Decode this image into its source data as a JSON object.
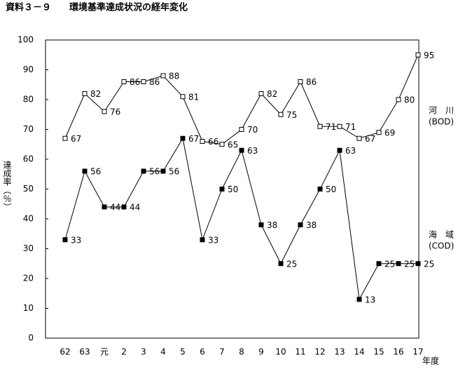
{
  "chart_data": {
    "type": "line",
    "title": "資料３－９　　環境基準達成状況の経年変化",
    "y_label": "達成率（％）",
    "x_label": "年度",
    "categories": [
      "62",
      "63",
      "元",
      "2",
      "3",
      "4",
      "5",
      "6",
      "7",
      "8",
      "9",
      "10",
      "11",
      "12",
      "13",
      "14",
      "15",
      "16",
      "17"
    ],
    "series": [
      {
        "name": "河　川",
        "note": "(BOD)",
        "color": "#000000",
        "marker": "open-square",
        "values": [
          67,
          82,
          76,
          86,
          86,
          88,
          81,
          66,
          65,
          70,
          82,
          75,
          86,
          71,
          71,
          67,
          69,
          80,
          95
        ]
      },
      {
        "name": "海　域",
        "note": "(COD)",
        "color": "#000000",
        "marker": "filled-square",
        "values": [
          33,
          56,
          44,
          44,
          56,
          56,
          67,
          33,
          50,
          63,
          38,
          25,
          38,
          50,
          63,
          13,
          25,
          25,
          25
        ]
      }
    ],
    "ylim": [
      0,
      100
    ],
    "yticks": [
      0,
      10,
      20,
      30,
      40,
      50,
      60,
      70,
      80,
      90,
      100
    ],
    "grid": false
  }
}
